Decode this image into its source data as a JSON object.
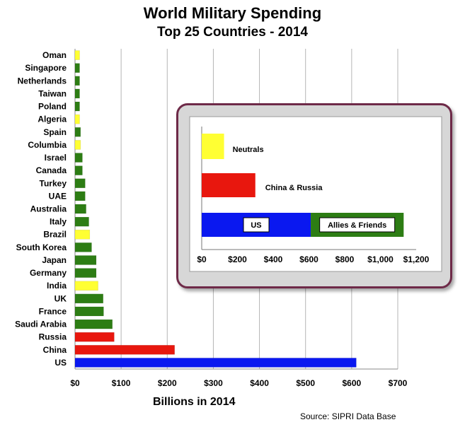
{
  "title": "World Military Spending",
  "subtitle": "Top 25 Countries - 2014",
  "source": "Source: SIPRI Data Base",
  "colors": {
    "neutral": "#ffff33",
    "china_russia": "#e8170e",
    "us": "#0a18f0",
    "allies": "#2d7d14",
    "grid": "#b5b5b5",
    "panel_border": "#6e2a48"
  },
  "chart_data": [
    {
      "type": "bar",
      "orientation": "horizontal",
      "title": "World Military Spending",
      "subtitle": "Top 25 Countries - 2014",
      "xlabel": "Billions in 2014",
      "ylabel": "",
      "xlim": [
        0,
        700
      ],
      "xticks": [
        0,
        100,
        200,
        300,
        400,
        500,
        600,
        700
      ],
      "xtick_labels": [
        "$0",
        "$100",
        "$200",
        "$300",
        "$400",
        "$500",
        "$600",
        "$700"
      ],
      "grid": "vertical",
      "categories": [
        "Oman",
        "Singapore",
        "Netherlands",
        "Taiwan",
        "Poland",
        "Algeria",
        "Spain",
        "Columbia",
        "Israel",
        "Canada",
        "Turkey",
        "UAE",
        "Australia",
        "Italy",
        "Brazil",
        "South Korea",
        "Japan",
        "Germany",
        "India",
        "UK",
        "France",
        "Saudi Arabia",
        "Russia",
        "China",
        "US"
      ],
      "values": [
        10,
        10,
        10,
        10,
        10,
        10,
        12,
        12,
        16,
        16,
        22,
        22,
        24,
        30,
        32,
        36,
        46,
        46,
        50,
        61,
        62,
        81,
        85,
        216,
        610
      ],
      "groups": [
        "neutral",
        "allies",
        "allies",
        "allies",
        "allies",
        "neutral",
        "allies",
        "neutral",
        "allies",
        "allies",
        "allies",
        "allies",
        "allies",
        "allies",
        "neutral",
        "allies",
        "allies",
        "allies",
        "neutral",
        "allies",
        "allies",
        "allies",
        "china_russia",
        "china_russia",
        "us"
      ]
    },
    {
      "type": "bar",
      "orientation": "horizontal",
      "stacked": true,
      "title": "",
      "xlabel": "",
      "xlim": [
        0,
        1200
      ],
      "xticks": [
        0,
        200,
        400,
        600,
        800,
        1000,
        1200
      ],
      "xtick_labels": [
        "$0",
        "$200",
        "$400",
        "$600",
        "$800",
        "$1,000",
        "$1,200"
      ],
      "grid": "none",
      "categories": [
        "Neutrals",
        "China & Russia",
        "US"
      ],
      "series": [
        {
          "name": "Neutrals",
          "group": "neutral",
          "values": [
            125,
            0,
            0
          ]
        },
        {
          "name": "China & Russia",
          "group": "china_russia",
          "values": [
            0,
            300,
            0
          ]
        },
        {
          "name": "US",
          "group": "us",
          "values": [
            0,
            0,
            610
          ]
        },
        {
          "name": "Allies & Friends",
          "group": "allies",
          "values": [
            0,
            0,
            520
          ]
        }
      ],
      "labels": [
        "Neutrals",
        "China & Russia",
        "US",
        "Allies & Friends"
      ]
    }
  ]
}
